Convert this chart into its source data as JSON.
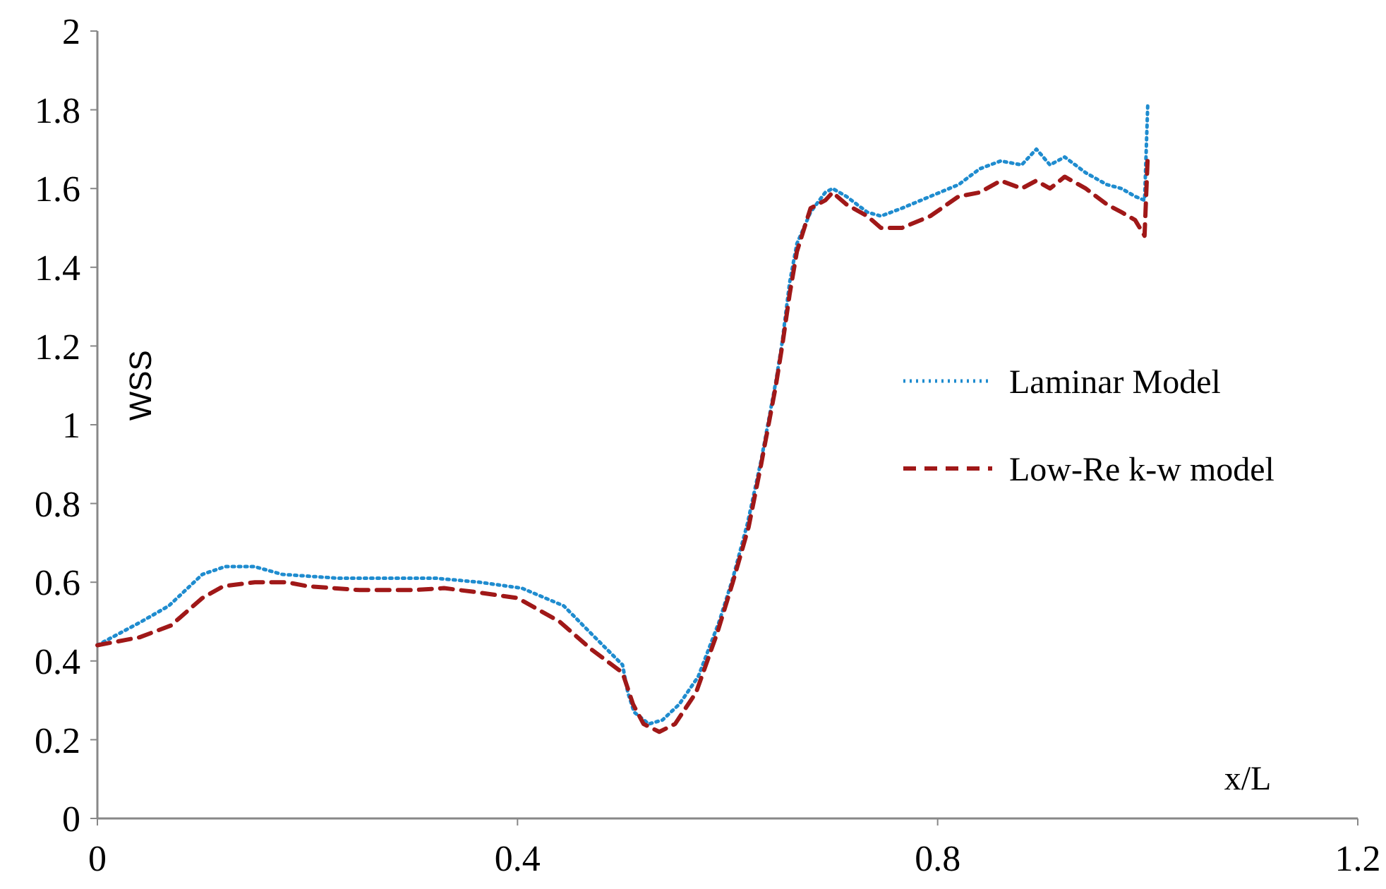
{
  "chart_data": {
    "type": "line",
    "xlabel": "x/L",
    "ylabel": "WSS",
    "xlim": [
      0,
      1.2
    ],
    "ylim": [
      0,
      2
    ],
    "xticks": [
      0,
      0.4,
      0.8,
      1.2
    ],
    "yticks": [
      0,
      0.2,
      0.4,
      0.6,
      0.8,
      1,
      1.2,
      1.4,
      1.6,
      1.8,
      2
    ],
    "grid": false,
    "legend": "right",
    "marker": "none",
    "series": [
      {
        "name": "Laminar Model",
        "color": "#1f8ccf",
        "line_style": "dotted",
        "x": [
          0,
          0.042,
          0.068,
          0.1,
          0.122,
          0.149,
          0.176,
          0.23,
          0.283,
          0.323,
          0.364,
          0.404,
          0.444,
          0.47,
          0.5,
          0.505,
          0.511,
          0.525,
          0.538,
          0.554,
          0.572,
          0.592,
          0.605,
          0.619,
          0.632,
          0.646,
          0.652,
          0.659,
          0.666,
          0.679,
          0.693,
          0.7,
          0.713,
          0.733,
          0.746,
          0.766,
          0.793,
          0.82,
          0.84,
          0.86,
          0.88,
          0.894,
          0.907,
          0.921,
          0.941,
          0.961,
          0.975,
          0.988,
          0.997,
          1.0
        ],
        "values": [
          0.44,
          0.5,
          0.54,
          0.62,
          0.64,
          0.64,
          0.62,
          0.61,
          0.61,
          0.61,
          0.6,
          0.585,
          0.54,
          0.47,
          0.39,
          0.32,
          0.27,
          0.24,
          0.25,
          0.29,
          0.36,
          0.5,
          0.61,
          0.75,
          0.91,
          1.11,
          1.21,
          1.36,
          1.46,
          1.54,
          1.59,
          1.6,
          1.58,
          1.54,
          1.53,
          1.55,
          1.58,
          1.61,
          1.65,
          1.67,
          1.66,
          1.7,
          1.66,
          1.68,
          1.64,
          1.61,
          1.6,
          1.58,
          1.57,
          1.81
        ]
      },
      {
        "name": "Low-Re k-w model",
        "color": "#a01818",
        "line_style": "dashed",
        "x": [
          0,
          0.04,
          0.07,
          0.1,
          0.12,
          0.15,
          0.18,
          0.2,
          0.25,
          0.3,
          0.33,
          0.36,
          0.4,
          0.44,
          0.47,
          0.5,
          0.51,
          0.52,
          0.535,
          0.55,
          0.57,
          0.59,
          0.605,
          0.62,
          0.632,
          0.646,
          0.652,
          0.659,
          0.666,
          0.679,
          0.693,
          0.7,
          0.713,
          0.733,
          0.746,
          0.766,
          0.793,
          0.82,
          0.84,
          0.86,
          0.88,
          0.894,
          0.907,
          0.921,
          0.941,
          0.961,
          0.975,
          0.988,
          0.997,
          1.0
        ],
        "values": [
          0.44,
          0.46,
          0.49,
          0.56,
          0.59,
          0.6,
          0.6,
          0.59,
          0.58,
          0.58,
          0.585,
          0.575,
          0.56,
          0.5,
          0.43,
          0.37,
          0.29,
          0.24,
          0.22,
          0.24,
          0.32,
          0.47,
          0.6,
          0.74,
          0.9,
          1.1,
          1.2,
          1.33,
          1.44,
          1.55,
          1.57,
          1.59,
          1.56,
          1.53,
          1.5,
          1.5,
          1.53,
          1.58,
          1.59,
          1.62,
          1.6,
          1.62,
          1.6,
          1.63,
          1.6,
          1.56,
          1.54,
          1.52,
          1.48,
          1.68
        ]
      }
    ]
  }
}
